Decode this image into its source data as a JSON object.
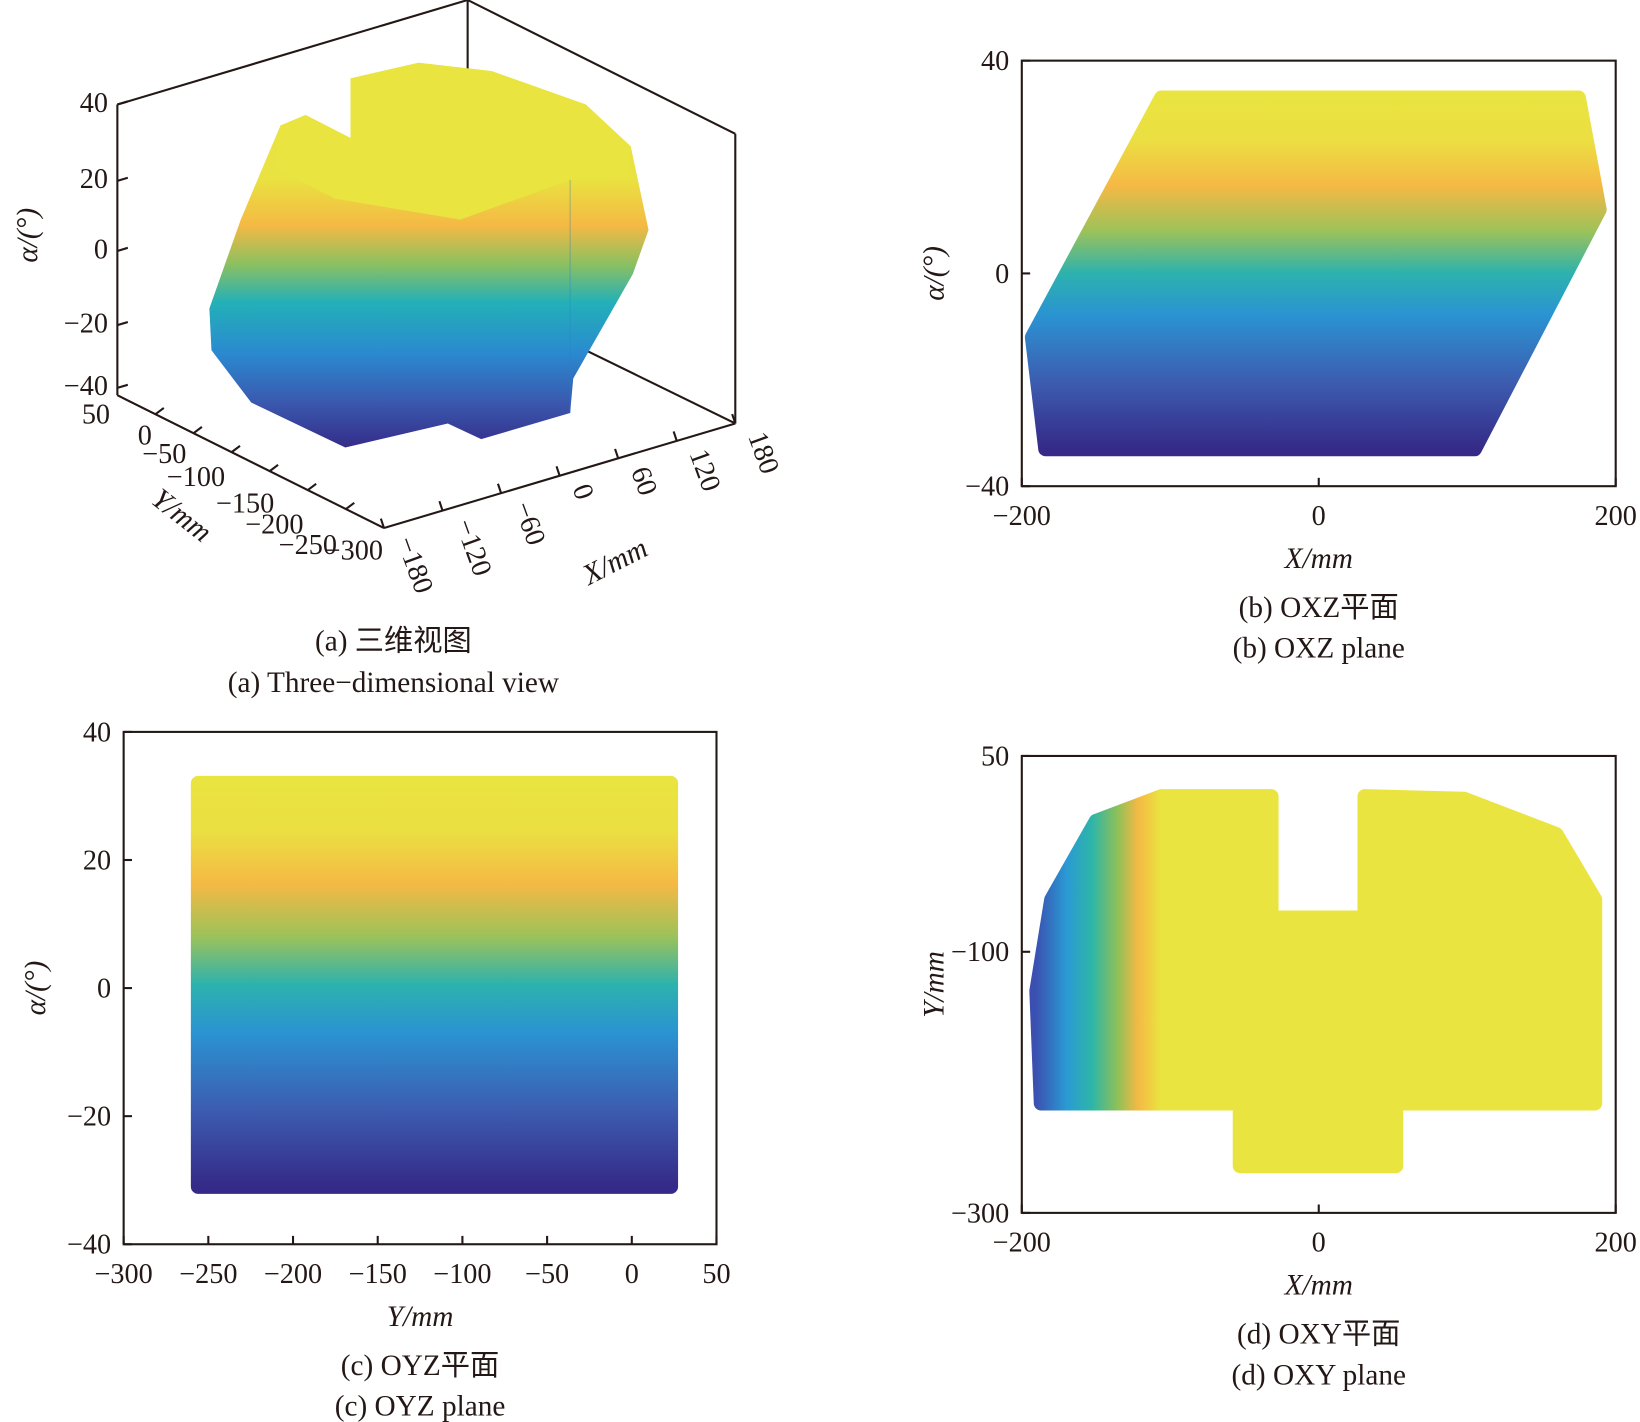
{
  "chart_data": [
    {
      "id": "a",
      "type": "surface3d",
      "caption_cn": "(a) 三维视图",
      "caption_en": "(a) Three−dimensional view",
      "xlabel": "X/mm",
      "ylabel": "Y/mm",
      "zlabel": "α/(°)",
      "xticks": [
        "−180",
        "−120",
        "−60",
        "0",
        "60",
        "120",
        "180"
      ],
      "yticks": [
        "50",
        "0",
        "−50",
        "−100",
        "−150",
        "−200",
        "−250",
        "−300"
      ],
      "zticks": [
        "40",
        "20",
        "0",
        "−20",
        "−40"
      ],
      "xlim": [
        -180,
        180
      ],
      "ylim": [
        -300,
        50
      ],
      "zlim": [
        -40,
        40
      ]
    },
    {
      "id": "b",
      "type": "scatter",
      "caption_cn": "(b) OXZ平面",
      "caption_en": "(b) OXZ plane",
      "xlabel": "X/mm",
      "ylabel": "α/(°)",
      "xlim": [
        -200,
        200
      ],
      "ylim": [
        -40,
        40
      ],
      "xticks": [
        {
          "v": -200,
          "t": "−200"
        },
        {
          "v": 0,
          "t": "0"
        },
        {
          "v": 200,
          "t": "200"
        }
      ],
      "yticks": [
        {
          "v": -40,
          "t": "−40"
        },
        {
          "v": 0,
          "t": "0"
        },
        {
          "v": 40,
          "t": "40"
        }
      ],
      "region": [
        [
          -184,
          -33
        ],
        [
          105,
          -33
        ],
        [
          189,
          12
        ],
        [
          175,
          33
        ],
        [
          -106,
          33
        ],
        [
          -193,
          -12
        ]
      ]
    },
    {
      "id": "c",
      "type": "scatter",
      "caption_cn": "(c) OYZ平面",
      "caption_en": "(c) OYZ plane",
      "xlabel": "Y/mm",
      "ylabel": "α/(°)",
      "xlim": [
        -300,
        50
      ],
      "ylim": [
        -40,
        40
      ],
      "xticks": [
        {
          "v": -300,
          "t": "−300"
        },
        {
          "v": -250,
          "t": "−250"
        },
        {
          "v": -200,
          "t": "−200"
        },
        {
          "v": -150,
          "t": "−150"
        },
        {
          "v": -100,
          "t": "−100"
        },
        {
          "v": -50,
          "t": "−50"
        },
        {
          "v": 0,
          "t": "0"
        },
        {
          "v": 50,
          "t": "50"
        }
      ],
      "yticks": [
        {
          "v": -40,
          "t": "−40"
        },
        {
          "v": -20,
          "t": "−20"
        },
        {
          "v": 0,
          "t": "0"
        },
        {
          "v": 20,
          "t": "20"
        },
        {
          "v": 40,
          "t": "40"
        }
      ],
      "region": [
        [
          -256,
          -31
        ],
        [
          23,
          -31
        ],
        [
          23,
          32
        ],
        [
          -256,
          32
        ]
      ]
    },
    {
      "id": "d",
      "type": "scatter",
      "caption_cn": "(d) OXY平面",
      "caption_en": "(d) OXY plane",
      "xlabel": "X/mm",
      "ylabel": "Y/mm",
      "xlim": [
        -200,
        200
      ],
      "ylim": [
        -300,
        50
      ],
      "xticks": [
        {
          "v": -200,
          "t": "−200"
        },
        {
          "v": 0,
          "t": "0"
        },
        {
          "v": 200,
          "t": "200"
        }
      ],
      "yticks": [
        {
          "v": 50,
          "t": "50"
        },
        {
          "v": -100,
          "t": "−100"
        },
        {
          "v": -300,
          "t": "−300"
        }
      ],
      "region": [
        [
          -187,
          -216
        ],
        [
          -190,
          -130
        ],
        [
          -180,
          -60
        ],
        [
          -150,
          0
        ],
        [
          -106,
          19
        ],
        [
          -32,
          19
        ],
        [
          -32,
          -74
        ],
        [
          31,
          -74
        ],
        [
          31,
          19
        ],
        [
          98,
          17
        ],
        [
          160,
          -10
        ],
        [
          186,
          -60
        ],
        [
          186,
          -216
        ],
        [
          52,
          -216
        ],
        [
          52,
          -264
        ],
        [
          -53,
          -264
        ],
        [
          -53,
          -216
        ]
      ]
    }
  ],
  "colors": {
    "axis": "#231815",
    "high": "#e9e440",
    "low": "#352a87"
  }
}
